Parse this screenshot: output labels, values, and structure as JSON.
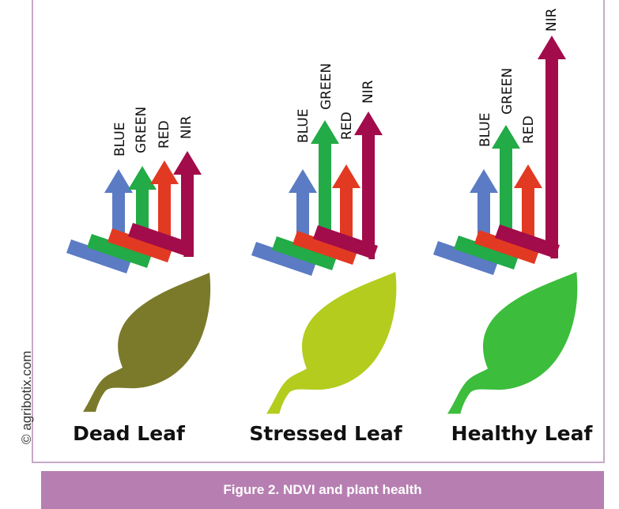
{
  "figure": {
    "caption": "Figure 2. NDVI and plant health",
    "copyright": "© agribotix.com",
    "colors": {
      "blue": "#5b7bc4",
      "green": "#22ab47",
      "red": "#e23a22",
      "nir": "#a20c4a",
      "caption_bg": "#b77fb1",
      "frame": "#c8a9c8"
    }
  },
  "bands": [
    "BLUE",
    "GREEN",
    "RED",
    "NIR"
  ],
  "panels": [
    {
      "title": "Dead Leaf",
      "leaf_color": "#7a7a2a",
      "reflectance": {
        "BLUE": "medium",
        "GREEN": "medium",
        "RED": "medium",
        "NIR": "medium"
      }
    },
    {
      "title": "Stressed Leaf",
      "leaf_color": "#b3cc1e",
      "reflectance": {
        "BLUE": "medium",
        "GREEN": "high",
        "RED": "medium",
        "NIR": "high"
      }
    },
    {
      "title": "Healthy Leaf",
      "leaf_color": "#3cbd3c",
      "reflectance": {
        "BLUE": "medium",
        "GREEN": "high",
        "RED": "medium",
        "NIR": "very high"
      }
    }
  ]
}
